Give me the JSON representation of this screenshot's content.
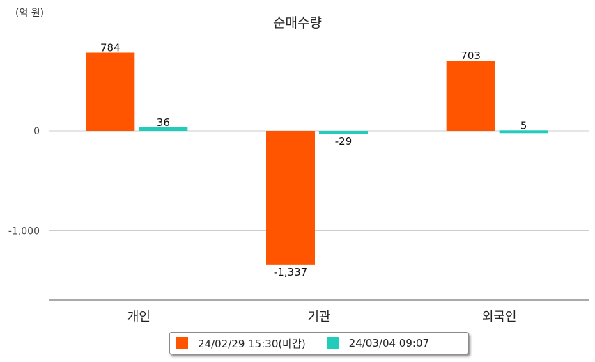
{
  "unit_label": "(억 원)",
  "chart_data": {
    "type": "bar",
    "title": "순매수량",
    "categories": [
      "개인",
      "기관",
      "외국인"
    ],
    "series": [
      {
        "name": "24/02/29 15:30(마감)",
        "color": "#ff5500",
        "values": [
          784,
          -1337,
          703
        ]
      },
      {
        "name": "24/03/04 09:07",
        "color": "#22ccbb",
        "values": [
          36,
          -29,
          5
        ]
      }
    ],
    "data_labels": [
      [
        "784",
        "-1,337",
        "703"
      ],
      [
        "36",
        "-29",
        "5"
      ]
    ],
    "yticks": [
      0,
      -1000
    ],
    "ytick_labels": [
      "0",
      "-1,000"
    ],
    "ylim": [
      -1700,
      1000
    ],
    "grid": true,
    "legend": "bottom"
  }
}
